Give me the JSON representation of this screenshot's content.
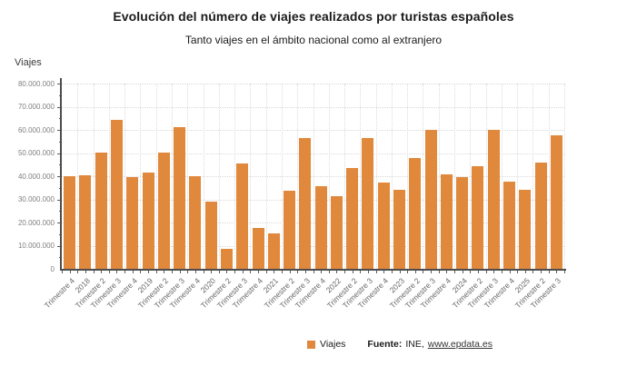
{
  "header": {
    "title": "Evolución del número de viajes realizados por turistas españoles",
    "subtitle": "Tanto viajes en el ámbito nacional como al extranjero"
  },
  "chart": {
    "y_axis_title": "Viajes"
  },
  "chart_data": {
    "type": "bar",
    "title": "Evolución del número de viajes realizados por turistas españoles",
    "xlabel": "",
    "ylabel": "Viajes",
    "ylim": [
      0,
      80000000
    ],
    "y_tick_step": 10000000,
    "y_tick_labels": [
      "0",
      "10.000.000",
      "20.000.000",
      "30.000.000",
      "40.000.000",
      "50.000.000",
      "60.000.000",
      "70.000.000",
      "80.000.000"
    ],
    "grid": true,
    "legend_position": "bottom",
    "bar_color": "#E0883C",
    "series_name": "Viajes",
    "categories": [
      "Trimestre 4",
      "2018",
      "Trimestre 2",
      "Trimestre 3",
      "Trimestre 4",
      "2019",
      "Trimestre 2",
      "Trimestre 3",
      "Trimestre 4",
      "2020",
      "Trimestre 2",
      "Trimestre 3",
      "Trimestre 4",
      "2021",
      "Trimestre 2",
      "Trimestre 3",
      "Trimestre 4",
      "2022",
      "Trimestre 2",
      "Trimestre 3",
      "Trimestre 4",
      "2023",
      "Trimestre 2",
      "Trimestre 3",
      "Trimestre 4",
      "2024",
      "Trimestre 2",
      "Trimestre 3",
      "Trimestre 4",
      "2025",
      "Trimestre 2",
      "Trimestre 3"
    ],
    "values": [
      40000000,
      40500000,
      50300000,
      64400000,
      39800000,
      41400000,
      50100000,
      61000000,
      40000000,
      28900000,
      8800000,
      45600000,
      17500000,
      15300000,
      33600000,
      56600000,
      35800000,
      31500000,
      43700000,
      56300000,
      37200000,
      34300000,
      47800000,
      60000000,
      40900000,
      39800000,
      44400000,
      59900000,
      37600000,
      34000000,
      46000000,
      57700000
    ]
  },
  "legend": {
    "label": "Viajes",
    "color": "#E0883C"
  },
  "footer": {
    "source_prefix": "Fuente:",
    "source_value": "INE,",
    "link": "www.epdata.es"
  },
  "colors": {
    "bar": "#E0883C",
    "axis": "#4d4d4d",
    "grid": "#d9d9d9",
    "y_label": "#7f7f7f",
    "x_label": "#686868",
    "text": "#1a1a1a"
  }
}
